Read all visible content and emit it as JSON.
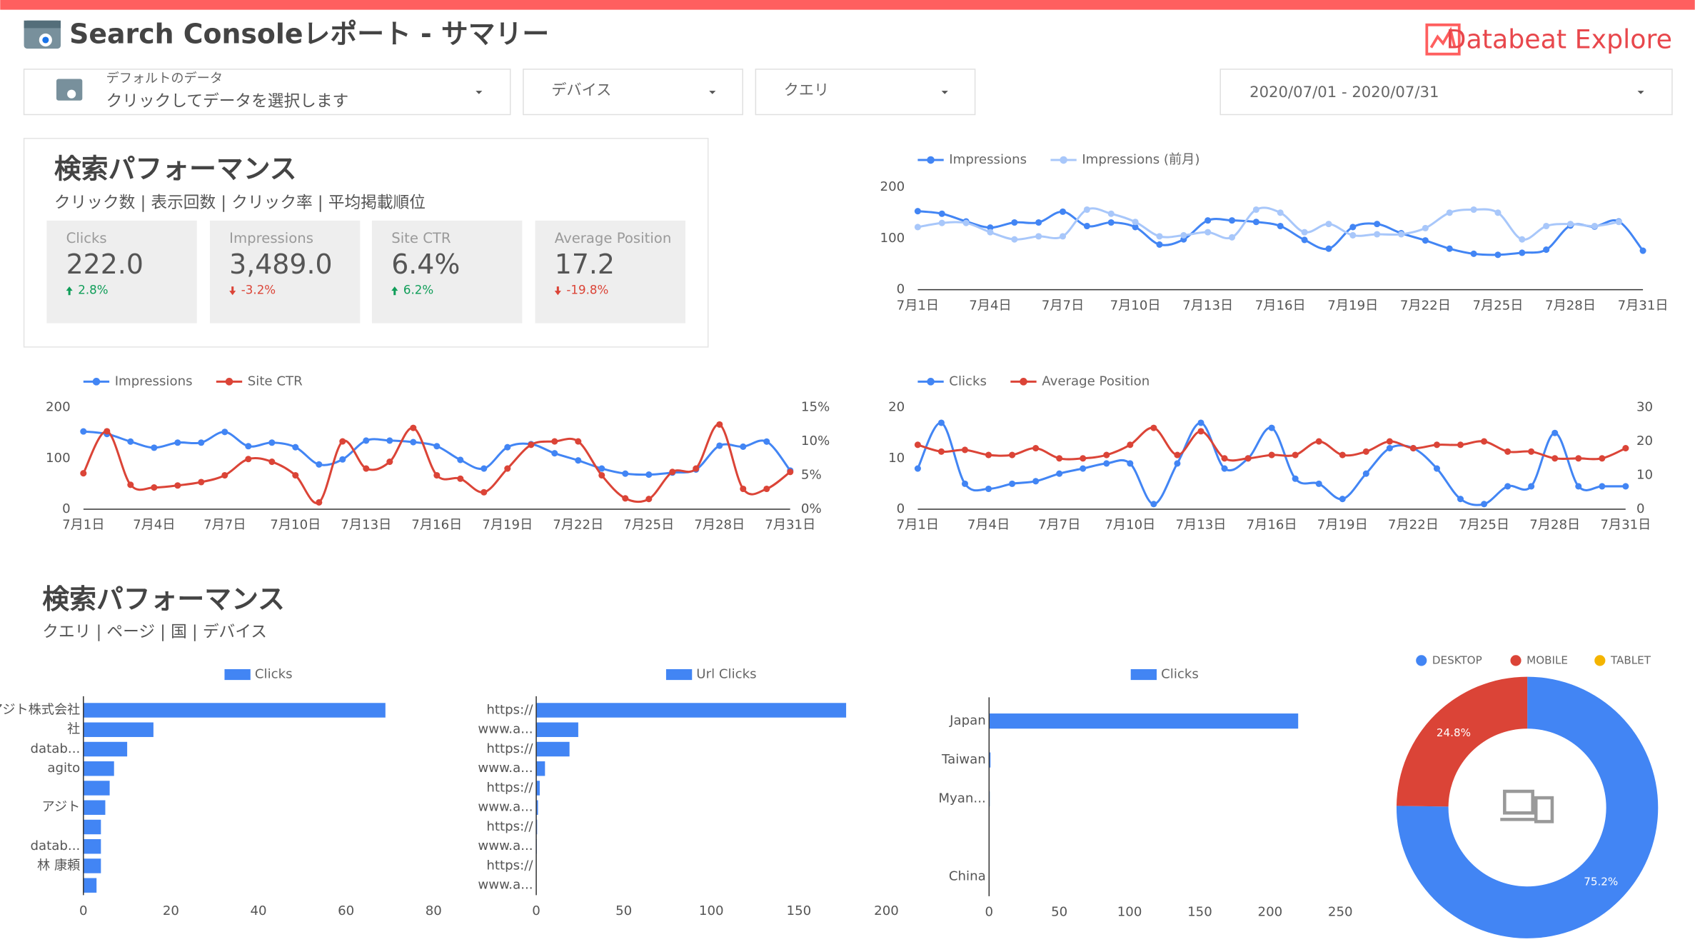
{
  "header": {
    "title": "Search Consoleレポート - サマリー",
    "logo": "Databeat Explore"
  },
  "filters": {
    "data_source": {
      "label": "デフォルトのデータ",
      "placeholder": "クリックしてデータを選択します"
    },
    "device": "デバイス",
    "query": "クエリ",
    "date_range": "2020/07/01 - 2020/07/31"
  },
  "sections": [
    {
      "title": "検索パフォーマンス",
      "subtitle": "クリック数 | 表示回数 | クリック率 | 平均掲載順位"
    },
    {
      "title": "検索パフォーマンス",
      "subtitle": "クエリ | ページ | 国 | デバイス"
    }
  ],
  "scorecards": [
    {
      "label": "Clicks",
      "value": "222.0",
      "change": "2.8%",
      "direction": "up"
    },
    {
      "label": "Impressions",
      "value": "3,489.0",
      "change": "-3.2%",
      "direction": "down"
    },
    {
      "label": "Site CTR",
      "value": "6.4%",
      "change": "6.2%",
      "direction": "up"
    },
    {
      "label": "Average Position",
      "value": "17.2",
      "change": "-19.8%",
      "direction": "down"
    }
  ],
  "chart_data": [
    {
      "type": "line",
      "categories": [
        "7月1日",
        null,
        null,
        "7月4日",
        null,
        null,
        "7月7日",
        null,
        null,
        "7月10日",
        null,
        null,
        "7月13日",
        null,
        null,
        "7月16日",
        null,
        null,
        "7月19日",
        null,
        null,
        "7月22日",
        null,
        null,
        "7月25日",
        null,
        null,
        "7月28日",
        null,
        null,
        "7月31日"
      ],
      "series": [
        {
          "name": "Impressions",
          "color": "#4285f4",
          "values": [
            153,
            148,
            133,
            121,
            131,
            131,
            152,
            124,
            131,
            122,
            88,
            98,
            135,
            135,
            132,
            124,
            97,
            80,
            122,
            128,
            110,
            96,
            80,
            70,
            68,
            72,
            78,
            125,
            123,
            133,
            76
          ]
        },
        {
          "name": "Impressions (前月)",
          "color": "#a8c7fa",
          "values": [
            122,
            130,
            130,
            112,
            98,
            104,
            104,
            156,
            148,
            132,
            104,
            106,
            112,
            102,
            156,
            150,
            112,
            128,
            106,
            108,
            108,
            120,
            150,
            156,
            150,
            98,
            124,
            128,
            124,
            132,
            null
          ]
        }
      ],
      "ylim": [
        0,
        200
      ],
      "yticks": [
        0,
        100,
        200
      ],
      "legend": "top-left"
    },
    {
      "type": "line",
      "categories": [
        "7月1日",
        null,
        null,
        "7月4日",
        null,
        null,
        "7月7日",
        null,
        null,
        "7月10日",
        null,
        null,
        "7月13日",
        null,
        null,
        "7月16日",
        null,
        null,
        "7月19日",
        null,
        null,
        "7月22日",
        null,
        null,
        "7月25日",
        null,
        null,
        "7月28日",
        null,
        null,
        "7月31日"
      ],
      "series": [
        {
          "name": "Impressions",
          "color": "#4285f4",
          "values": [
            153,
            148,
            133,
            121,
            131,
            131,
            152,
            124,
            131,
            122,
            88,
            98,
            135,
            135,
            132,
            124,
            97,
            80,
            122,
            128,
            110,
            96,
            80,
            70,
            68,
            72,
            78,
            125,
            123,
            133,
            76
          ]
        },
        {
          "name": "Site CTR",
          "color": "#db4437",
          "axis": "y2",
          "values": [
            5.3,
            11.5,
            3.6,
            3.2,
            3.5,
            4.0,
            5.0,
            7.4,
            7.0,
            5.0,
            1.0,
            10.0,
            6.0,
            7.0,
            12.0,
            5.0,
            4.5,
            2.5,
            6.0,
            9.5,
            10.0,
            10.0,
            5.0,
            1.6,
            1.5,
            5.5,
            6.0,
            12.5,
            3.0,
            3.0,
            5.5
          ]
        }
      ],
      "ylim": [
        0,
        200
      ],
      "yticks": [
        0,
        100,
        200
      ],
      "y2lim": [
        0,
        15
      ],
      "y2ticks": [
        {
          "value": 0,
          "label": "0%"
        },
        {
          "value": 5,
          "label": "5%"
        },
        {
          "value": 10,
          "label": "10%"
        },
        {
          "value": 15,
          "label": "15%"
        }
      ],
      "legend": "top-left"
    },
    {
      "type": "line",
      "categories": [
        "7月1日",
        null,
        null,
        "7月4日",
        null,
        null,
        "7月7日",
        null,
        null,
        "7月10日",
        null,
        null,
        "7月13日",
        null,
        null,
        "7月16日",
        null,
        null,
        "7月19日",
        null,
        null,
        "7月22日",
        null,
        null,
        "7月25日",
        null,
        null,
        "7月28日",
        null,
        null,
        "7月31日"
      ],
      "series": [
        {
          "name": "Clicks",
          "color": "#4285f4",
          "values": [
            8,
            17,
            5,
            4,
            5,
            5.5,
            7,
            8,
            9,
            9,
            1,
            9,
            17,
            8,
            10,
            16,
            6,
            5,
            2,
            7,
            12,
            12,
            8,
            2,
            1,
            4.5,
            4.5,
            15,
            4.5,
            4.5,
            4.5
          ]
        },
        {
          "name": "Average Position",
          "color": "#db4437",
          "axis": "y2",
          "values": [
            19,
            17,
            17.5,
            16,
            16,
            18,
            15,
            15,
            16,
            19,
            24,
            16,
            23,
            15,
            15,
            16,
            16,
            20,
            16,
            17,
            20,
            18,
            19,
            19,
            20,
            17,
            17,
            15,
            15,
            15,
            18
          ]
        }
      ],
      "ylim": [
        0,
        20
      ],
      "yticks": [
        0,
        10,
        20
      ],
      "y2lim": [
        0,
        30
      ],
      "y2ticks": [
        0,
        10,
        20,
        30
      ],
      "legend": "top-left"
    },
    {
      "type": "bar",
      "orientation": "horizontal",
      "categories": [
        "アジト株式会社",
        "社",
        "datab...",
        "agito",
        null,
        "アジト",
        null,
        "datab...",
        "林 康頼",
        null
      ],
      "series": [
        {
          "name": "Clicks",
          "color": "#4285f4",
          "values": [
            69,
            16,
            10,
            7,
            6,
            5,
            4,
            4,
            4,
            3
          ]
        }
      ],
      "xlim": [
        0,
        80
      ],
      "xticks": [
        0,
        20,
        40,
        60,
        80
      ],
      "legend": "top"
    },
    {
      "type": "bar",
      "orientation": "horizontal",
      "categories": [
        "https://",
        "www.a...",
        "https://",
        "www.a...",
        "https://",
        "www.a...",
        "https://",
        "www.a...",
        "https://",
        "www.a..."
      ],
      "series": [
        {
          "name": "Url Clicks",
          "color": "#4285f4",
          "values": [
            177,
            24,
            19,
            5,
            2,
            1,
            0.5,
            0.3,
            0.2,
            0.1
          ]
        }
      ],
      "xlim": [
        0,
        200
      ],
      "xticks": [
        0,
        50,
        100,
        150,
        200
      ],
      "legend": "top"
    },
    {
      "type": "bar",
      "orientation": "horizontal",
      "categories": [
        "Japan",
        "Taiwan",
        "Myan...",
        null,
        "China"
      ],
      "series": [
        {
          "name": "Clicks",
          "color": "#4285f4",
          "values": [
            220,
            1,
            0.5,
            0.3,
            0.2
          ]
        }
      ],
      "xlim": [
        0,
        250
      ],
      "xticks": [
        0,
        50,
        100,
        150,
        200,
        250
      ],
      "legend": "top"
    },
    {
      "type": "pie",
      "donut": true,
      "categories": [
        "DESKTOP",
        "MOBILE",
        "TABLET"
      ],
      "values": [
        75.2,
        24.8,
        0
      ],
      "value_labels": [
        "75.2%",
        "24.8%",
        null
      ],
      "colors": [
        "#4285f4",
        "#db4437",
        "#f4b400"
      ],
      "legend": "top"
    }
  ]
}
